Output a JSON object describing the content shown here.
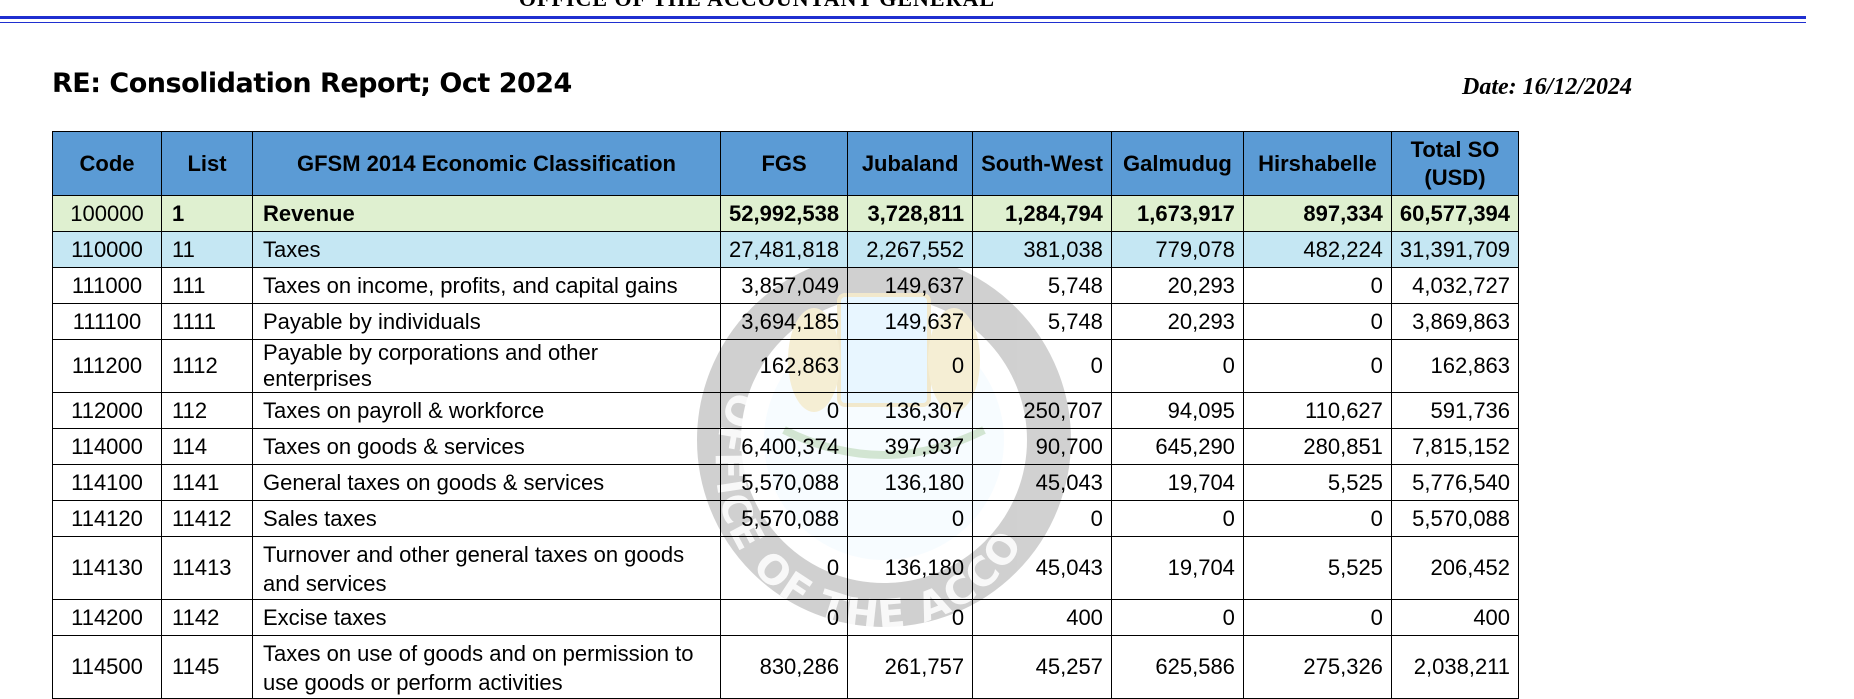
{
  "header": {
    "office_title": "OFFICE OF THE ACCOUNTANT GENERAL"
  },
  "report": {
    "title": "RE: Consolidation Report; Oct 2024",
    "date": "Date: 16/12/2024"
  },
  "watermark": {
    "seal_text": "OFFICE OF THE ACCOUNTANT GE"
  },
  "table": {
    "headers": [
      "Code",
      "List",
      "GFSM 2014 Economic Classification",
      "FGS",
      "Jubaland",
      "South-West",
      "Galmudug",
      "Hirshabelle",
      "Total SO (USD)"
    ],
    "rows": [
      [
        "100000",
        "1",
        "Revenue",
        "52,992,538",
        "3,728,811",
        "1,284,794",
        "1,673,917",
        "897,334",
        "60,577,394"
      ],
      [
        "110000",
        "11",
        "Taxes",
        "27,481,818",
        "2,267,552",
        "381,038",
        "779,078",
        "482,224",
        "31,391,709"
      ],
      [
        "111000",
        "111",
        "Taxes on income, profits, and capital gains",
        "3,857,049",
        "149,637",
        "5,748",
        "20,293",
        "0",
        "4,032,727"
      ],
      [
        "111100",
        "1111",
        "Payable by individuals",
        "3,694,185",
        "149,637",
        "5,748",
        "20,293",
        "0",
        "3,869,863"
      ],
      [
        "111200",
        "1112",
        "Payable by corporations and other enterprises",
        "162,863",
        "0",
        "0",
        "0",
        "0",
        "162,863"
      ],
      [
        "112000",
        "112",
        "Taxes on payroll & workforce",
        "0",
        "136,307",
        "250,707",
        "94,095",
        "110,627",
        "591,736"
      ],
      [
        "114000",
        "114",
        "Taxes on goods & services",
        "6,400,374",
        "397,937",
        "90,700",
        "645,290",
        "280,851",
        "7,815,152"
      ],
      [
        "114100",
        "1141",
        "General taxes on goods & services",
        "5,570,088",
        "136,180",
        "45,043",
        "19,704",
        "5,525",
        "5,776,540"
      ],
      [
        "114120",
        "11412",
        "Sales taxes",
        "5,570,088",
        "0",
        "0",
        "0",
        "0",
        "5,570,088"
      ],
      [
        "114130",
        "11413",
        "Turnover and other general taxes on goods and services",
        "0",
        "136,180",
        "45,043",
        "19,704",
        "5,525",
        "206,452"
      ],
      [
        "114200",
        "1142",
        "Excise taxes",
        "0",
        "0",
        "400",
        "0",
        "0",
        "400"
      ],
      [
        "114500",
        "1145",
        "Taxes on use of goods and on permission to use goods or perform activities",
        "830,286",
        "261,757",
        "45,257",
        "625,586",
        "275,326",
        "2,038,211"
      ]
    ]
  }
}
